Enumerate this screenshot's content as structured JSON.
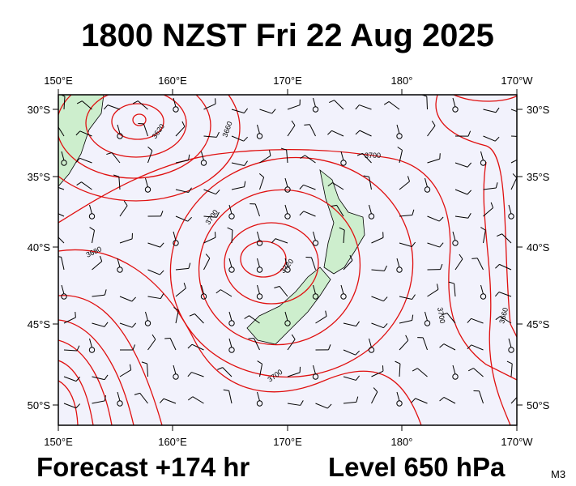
{
  "header": {
    "title": "1800 NZST Fri 22 Aug 2025"
  },
  "axes": {
    "longitudes": [
      "150°E",
      "160°E",
      "170°E",
      "180°",
      "170°W"
    ],
    "latitudes": [
      "30°S",
      "35°S",
      "40°S",
      "45°S",
      "50°S"
    ]
  },
  "contour_labels": [
    "3620",
    "3660",
    "3700",
    "3700",
    "3680",
    "3720",
    "3700",
    "3660",
    "3700"
  ],
  "footer": {
    "forecast": "Forecast +174 hr",
    "level": "Level 650 hPa",
    "model": "M3"
  }
}
